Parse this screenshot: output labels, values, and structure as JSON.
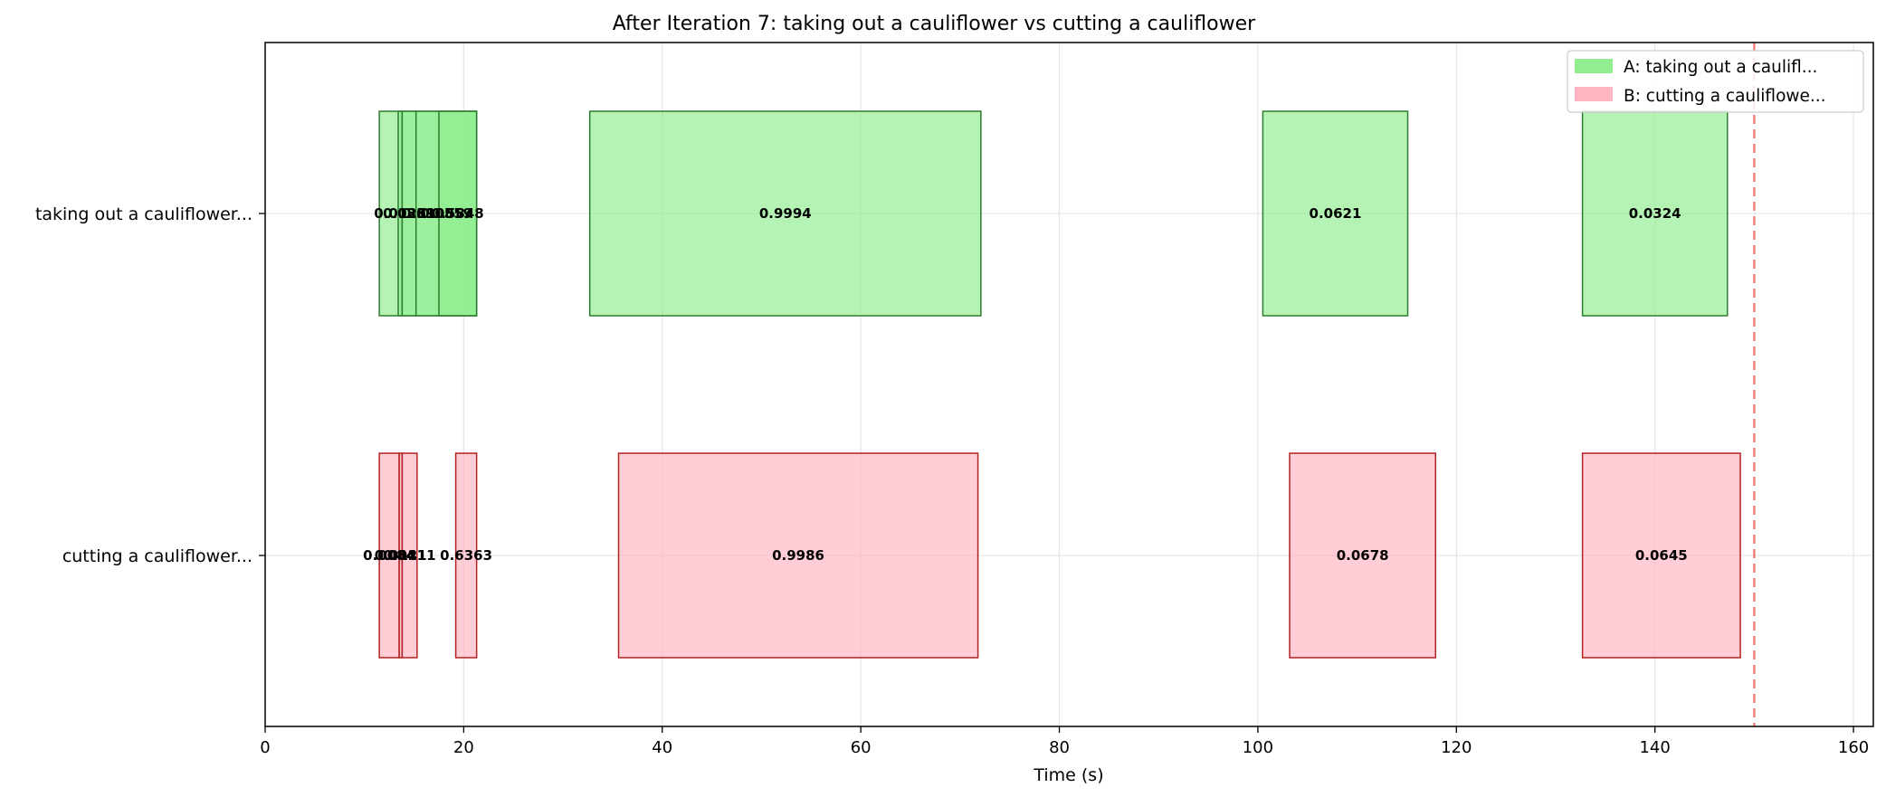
{
  "chart_data": {
    "type": "bar",
    "orientation": "horizontal-timeline",
    "title": "After Iteration 7: taking out a cauliflower vs cutting a cauliflower",
    "xlabel": "Time (s)",
    "ylabel": "",
    "xlim": [
      0,
      162
    ],
    "xticks": [
      0,
      20,
      40,
      60,
      80,
      100,
      120,
      140,
      160
    ],
    "xtick_labels": [
      "0",
      "20",
      "40",
      "60",
      "80",
      "100",
      "120",
      "140",
      "160"
    ],
    "grid": true,
    "legend_position": "top-right",
    "reference_line": {
      "x": 150,
      "style": "dashed",
      "color": "#f08080"
    },
    "rows": [
      {
        "label": "taking out a cauliflower...",
        "legend": "A: taking out a caulifl...",
        "fill": "#90ee90",
        "edge": "#2e7d32",
        "segments": [
          {
            "start": 11.5,
            "end": 21.3,
            "score": "0.0108"
          },
          {
            "start": 13.4,
            "end": 13.8,
            "score": "0.0128"
          },
          {
            "start": 13.8,
            "end": 15.2,
            "score": "0.0339"
          },
          {
            "start": 15.2,
            "end": 21.3,
            "score": "0.0559"
          },
          {
            "start": 17.5,
            "end": 21.3,
            "score": "0.5848"
          },
          {
            "start": 32.7,
            "end": 72.1,
            "score": "0.9994"
          },
          {
            "start": 100.5,
            "end": 115.1,
            "score": "0.0621"
          },
          {
            "start": 132.7,
            "end": 147.3,
            "score": "0.0324"
          }
        ]
      },
      {
        "label": "cutting a cauliflower...",
        "legend": "B: cutting a cauliflowe...",
        "fill": "#ffb6c1",
        "edge": "#b22222",
        "segments": [
          {
            "start": 11.5,
            "end": 13.5,
            "score": "0.0084"
          },
          {
            "start": 13.5,
            "end": 13.8,
            "score": "0.0121"
          },
          {
            "start": 13.8,
            "end": 15.3,
            "score": "0.0411"
          },
          {
            "start": 19.2,
            "end": 21.3,
            "score": "0.6363"
          },
          {
            "start": 35.6,
            "end": 71.8,
            "score": "0.9986"
          },
          {
            "start": 103.2,
            "end": 117.9,
            "score": "0.0678"
          },
          {
            "start": 132.7,
            "end": 148.6,
            "score": "0.0645"
          }
        ]
      }
    ]
  }
}
